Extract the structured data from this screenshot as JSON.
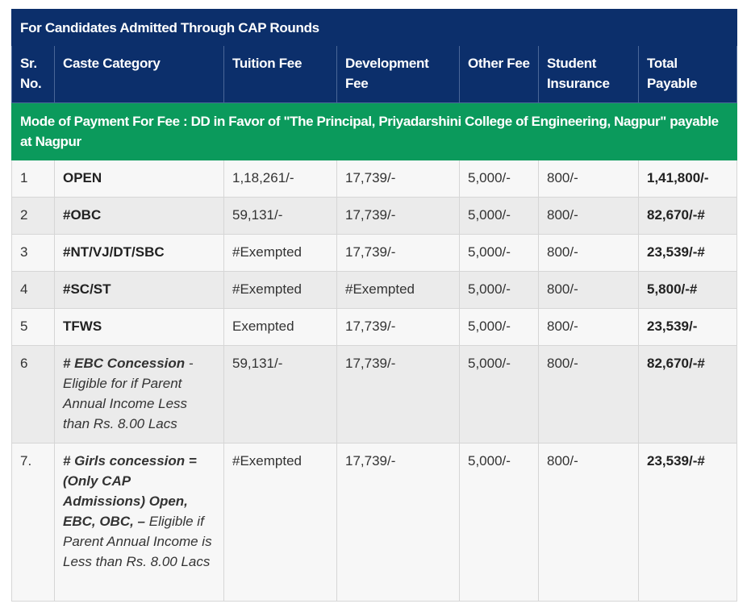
{
  "table_title": "For Candidates Admitted Through CAP Rounds",
  "headers": {
    "sr_no": "Sr. No.",
    "category": "Caste Category",
    "tuition": "Tuition Fee",
    "development": "Development Fee",
    "other": "Other Fee",
    "insurance": "Student Insurance",
    "total": "Total Payable"
  },
  "payment_mode": "Mode of Payment For Fee : DD in Favor of \"The Principal, Priyadarshini College of Engineering, Nagpur\" payable at Nagpur",
  "rows": [
    {
      "sr": "1",
      "category": "OPEN",
      "tuition": "1,18,261/-",
      "development": "17,739/-",
      "other": "5,000/-",
      "insurance": "800/-",
      "total": "1,41,800/-"
    },
    {
      "sr": "2",
      "category": "#OBC",
      "tuition": "59,131/-",
      "development": "17,739/-",
      "other": "5,000/-",
      "insurance": "800/-",
      "total": "82,670/-#"
    },
    {
      "sr": "3",
      "category": "#NT/VJ/DT/SBC",
      "tuition": "#Exempted",
      "development": "17,739/-",
      "other": "5,000/-",
      "insurance": "800/-",
      "total": "23,539/-#"
    },
    {
      "sr": "4",
      "category": "#SC/ST",
      "tuition": "#Exempted",
      "development": "#Exempted",
      "other": "5,000/-",
      "insurance": "800/-",
      "total": "5,800/-#"
    },
    {
      "sr": "5",
      "category": "TFWS",
      "tuition": "Exempted",
      "development": "17,739/-",
      "other": "5,000/-",
      "insurance": "800/-",
      "total": "23,539/-"
    },
    {
      "sr": "6",
      "category_main": "# EBC Concession",
      "category_note": " - Eligible for if Parent Annual Income Less than Rs. 8.00 Lacs",
      "tuition": "59,131/-",
      "development": "17,739/-",
      "other": "5,000/-",
      "insurance": "800/-",
      "total": "82,670/-#"
    },
    {
      "sr": "7.",
      "category_main": "# Girls concession = (Only CAP Admissions) Open, EBC, OBC, –",
      "category_note": " Eligible if Parent Annual Income is Less than Rs. 8.00 Lacs",
      "tuition": "#Exempted",
      "development": "17,739/-",
      "other": "5,000/-",
      "insurance": "800/-",
      "total": "23,539/-#"
    }
  ],
  "colors": {
    "header_bg": "#0c2f6b",
    "payment_mode_bg": "#0b9a5c"
  }
}
